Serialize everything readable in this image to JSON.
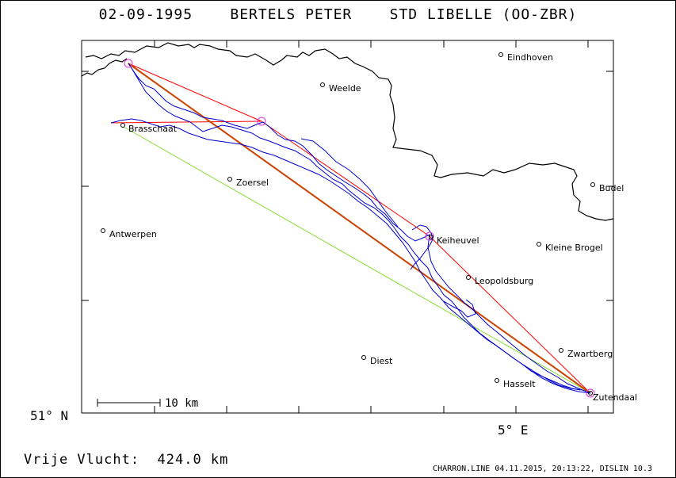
{
  "title": "02-09-1995    BERTELS PETER    STD LIBELLE (OO-ZBR)",
  "axis": {
    "lat_label": "51° N",
    "lon_label": "5° E"
  },
  "scale_bar": {
    "label": "10 km"
  },
  "cities": [
    {
      "name": "Eindhoven"
    },
    {
      "name": "Weelde"
    },
    {
      "name": "Brasschaat"
    },
    {
      "name": "Zoersel"
    },
    {
      "name": "Budel"
    },
    {
      "name": "Antwerpen"
    },
    {
      "name": "Keiheuvel"
    },
    {
      "name": "Kleine Brogel"
    },
    {
      "name": "Leopoldsburg"
    },
    {
      "name": "Zwartberg"
    },
    {
      "name": "Diest"
    },
    {
      "name": "Hasselt"
    },
    {
      "name": "Zutendaal"
    }
  ],
  "footer": {
    "distance": "Vrije Vlucht:  424.0 km",
    "credit": "CHARRON.LINE 04.11.2015, 20:13:22, DISLIN 10.3"
  },
  "colors": {
    "task_line": "#ff0000",
    "leg_line": "#cc5500",
    "track": "#0000cc",
    "alt_line": "#88dd33",
    "turnpoint": "#dd33dd"
  }
}
